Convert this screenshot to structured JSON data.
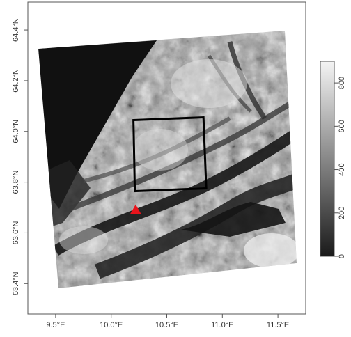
{
  "map": {
    "x_ticks": [
      "9.5°E",
      "10.0°E",
      "10.5°E",
      "11.0°E",
      "11.5°E"
    ],
    "y_ticks": [
      "63.4°N",
      "63.6°N",
      "63.8°N",
      "64.0°N",
      "64.2°N",
      "64.4°N"
    ],
    "x_tick_values": [
      9.5,
      10.0,
      10.5,
      11.0,
      11.5
    ],
    "y_tick_values": [
      63.4,
      63.6,
      63.8,
      64.0,
      64.2,
      64.4
    ],
    "xlim": [
      9.25,
      11.75
    ],
    "ylim": [
      63.28,
      64.51
    ],
    "study_area_box": {
      "lon_min": 10.2,
      "lon_max": 10.83,
      "lat_min": 63.77,
      "lat_max": 64.05
    },
    "marker": {
      "lon": 10.22,
      "lat": 63.69,
      "color": "#e8141c"
    }
  },
  "legend": {
    "ticks": [
      "0",
      "200",
      "400",
      "600",
      "800"
    ],
    "tick_values": [
      0,
      200,
      400,
      600,
      800
    ],
    "range": [
      0,
      900
    ],
    "color_low": "#1a1a1a",
    "color_high": "#f2f2f2"
  }
}
